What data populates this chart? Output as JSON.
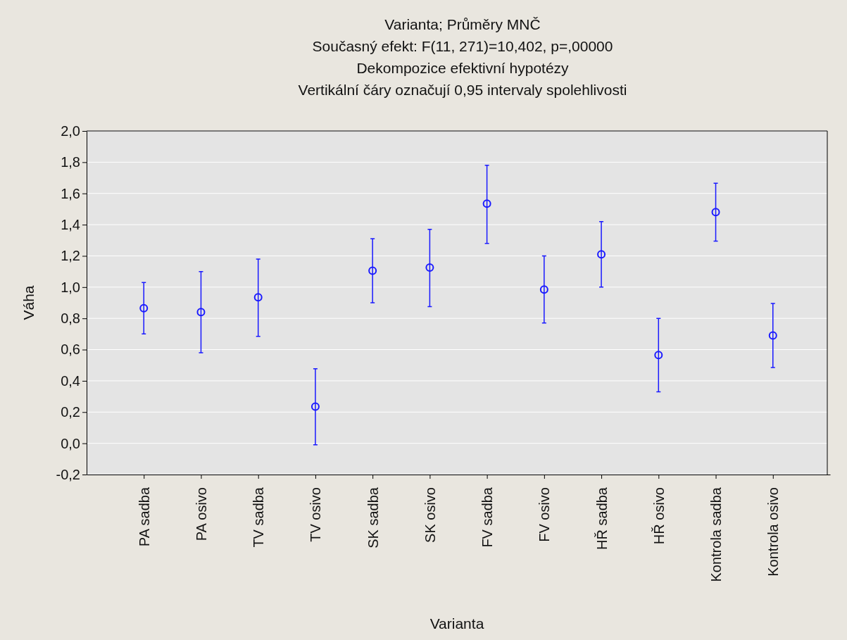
{
  "chart_data": {
    "type": "scatter",
    "title": "Varianta; Průměry MNČ",
    "subtitle": "Současný efekt: F(11, 271)=10,402, p=,00000",
    "annotations": [
      "Dekompozice efektivní hypotézy",
      "Vertikální čáry označují 0,95 intervaly spolehlivosti"
    ],
    "xlabel": "Varianta",
    "ylabel": "Váha",
    "categories": [
      "PA sadba",
      "PA osivo",
      "TV sadba",
      "TV osivo",
      "SK sadba",
      "SK osivo",
      "FV sadba",
      "FV osivo",
      "HŘ sadba",
      "HŘ osivo",
      "Kontrola sadba",
      "Kontrola osivo"
    ],
    "series": [
      {
        "color": "#1a1aff",
        "values": [
          0.865,
          0.84,
          0.935,
          0.235,
          1.105,
          1.125,
          1.535,
          0.985,
          1.21,
          0.565,
          1.48,
          0.69
        ],
        "errors": [
          [
            0.7,
            1.03
          ],
          [
            0.58,
            1.1
          ],
          [
            0.685,
            1.18
          ],
          [
            -0.01,
            0.477
          ],
          [
            0.9,
            1.31
          ],
          [
            0.875,
            1.37
          ],
          [
            1.28,
            1.78
          ],
          [
            0.77,
            1.2
          ],
          [
            1.0,
            1.42
          ],
          [
            0.33,
            0.8
          ],
          [
            1.295,
            1.665
          ],
          [
            0.485,
            0.895
          ]
        ]
      }
    ],
    "ylim": [
      -0.2,
      2.0
    ],
    "yticks": [
      {
        "value": -0.2,
        "label": "-0,2"
      },
      {
        "value": 0,
        "label": "0,0"
      },
      {
        "value": 0.2,
        "label": "0,2"
      },
      {
        "value": 0.4,
        "label": "0,4"
      },
      {
        "value": 0.6,
        "label": "0,6"
      },
      {
        "value": 0.8,
        "label": "0,8"
      },
      {
        "value": 1.0,
        "label": "1,0"
      },
      {
        "value": 1.2,
        "label": "1,2"
      },
      {
        "value": 1.4,
        "label": "1,4"
      },
      {
        "value": 1.6,
        "label": "1,6"
      },
      {
        "value": 1.8,
        "label": "1,8"
      },
      {
        "value": 2.0,
        "label": "2,0"
      }
    ],
    "grid": "y",
    "marker": "circle"
  }
}
